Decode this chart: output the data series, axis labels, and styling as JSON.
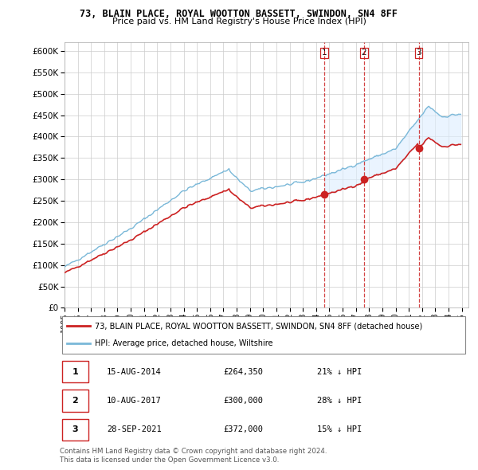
{
  "title": "73, BLAIN PLACE, ROYAL WOOTTON BASSETT, SWINDON, SN4 8FF",
  "subtitle": "Price paid vs. HM Land Registry's House Price Index (HPI)",
  "hpi_label": "HPI: Average price, detached house, Wiltshire",
  "property_label": "73, BLAIN PLACE, ROYAL WOOTTON BASSETT, SWINDON, SN4 8FF (detached house)",
  "footer1": "Contains HM Land Registry data © Crown copyright and database right 2024.",
  "footer2": "This data is licensed under the Open Government Licence v3.0.",
  "sale_events": [
    {
      "num": 1,
      "date": "15-AUG-2014",
      "price": "£264,350",
      "pct": "21% ↓ HPI",
      "year": 2014.617
    },
    {
      "num": 2,
      "date": "10-AUG-2017",
      "price": "£300,000",
      "pct": "28% ↓ HPI",
      "year": 2017.617
    },
    {
      "num": 3,
      "date": "28-SEP-2021",
      "price": "£372,000",
      "pct": "15% ↓ HPI",
      "year": 2021.747
    }
  ],
  "sale_prices": [
    264350,
    300000,
    372000
  ],
  "ylim": [
    0,
    620000
  ],
  "yticks": [
    0,
    50000,
    100000,
    150000,
    200000,
    250000,
    300000,
    350000,
    400000,
    450000,
    500000,
    550000,
    600000
  ],
  "hpi_color": "#7ab8d8",
  "property_color": "#cc2222",
  "vline_color": "#cc2222",
  "fill_color": "#ddeeff",
  "background_color": "#ffffff",
  "xlim": [
    1995.0,
    2025.5
  ],
  "xtick_years": [
    1995,
    1996,
    1997,
    1998,
    1999,
    2000,
    2001,
    2002,
    2003,
    2004,
    2005,
    2006,
    2007,
    2008,
    2009,
    2010,
    2011,
    2012,
    2013,
    2014,
    2015,
    2016,
    2017,
    2018,
    2019,
    2020,
    2021,
    2022,
    2023,
    2024,
    2025
  ]
}
